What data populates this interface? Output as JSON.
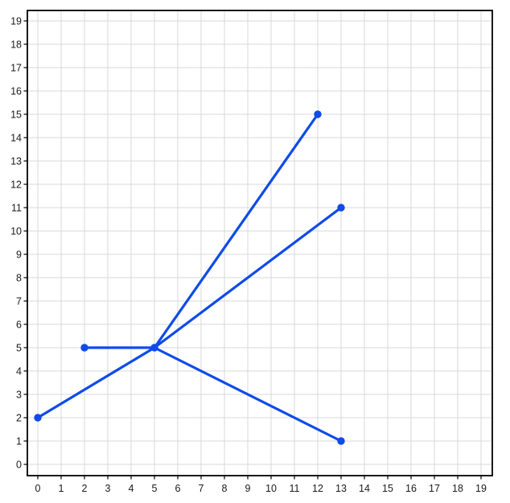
{
  "figure": {
    "background": "#ffffff",
    "border_color": "#000000",
    "grid_color": "#d9d9d9",
    "tick_color": "#000000",
    "label_color": "#1a1a1a"
  },
  "chart_data": {
    "type": "line",
    "title": "",
    "xlabel": "",
    "ylabel": "",
    "xlim": [
      -0.5,
      19.5
    ],
    "ylim": [
      -0.5,
      19.5
    ],
    "grid": true,
    "legend": false,
    "x_ticks": [
      0,
      1,
      2,
      3,
      4,
      5,
      6,
      7,
      8,
      9,
      10,
      11,
      12,
      13,
      14,
      15,
      16,
      17,
      18,
      19
    ],
    "y_ticks": [
      0,
      1,
      2,
      3,
      4,
      5,
      6,
      7,
      8,
      9,
      10,
      11,
      12,
      13,
      14,
      15,
      16,
      17,
      18,
      19
    ],
    "line_color": "#0e4be8",
    "marker_color": "#0e4be8",
    "line_width": 3.2,
    "marker_radius": 4.7,
    "nodes": [
      {
        "x": 0,
        "y": 2
      },
      {
        "x": 2,
        "y": 5
      },
      {
        "x": 5,
        "y": 5
      },
      {
        "x": 12,
        "y": 15
      },
      {
        "x": 13,
        "y": 11
      },
      {
        "x": 13,
        "y": 1
      }
    ],
    "series": [
      {
        "name": "edge-center-to-12-15",
        "x": [
          5,
          12
        ],
        "y": [
          5,
          15
        ]
      },
      {
        "name": "edge-center-to-13-11",
        "x": [
          5,
          13
        ],
        "y": [
          5,
          11
        ]
      },
      {
        "name": "edge-center-to-2-5",
        "x": [
          2,
          5
        ],
        "y": [
          5,
          5
        ]
      },
      {
        "name": "edge-center-to-0-2",
        "x": [
          0,
          5
        ],
        "y": [
          2,
          5
        ]
      },
      {
        "name": "edge-center-to-13-1",
        "x": [
          5,
          13
        ],
        "y": [
          5,
          1
        ]
      }
    ]
  }
}
